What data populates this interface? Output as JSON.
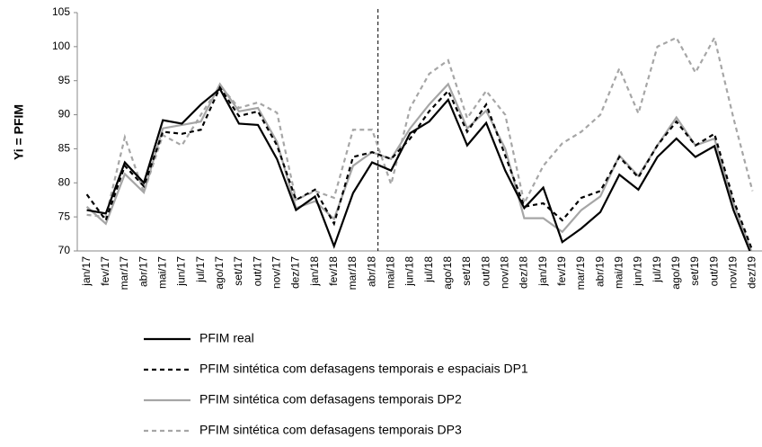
{
  "chart_data": {
    "type": "line",
    "y_label": "Yi = PFIM",
    "categories": [
      "jan/17",
      "fev/17",
      "mar/17",
      "abr/17",
      "mai/17",
      "jun/17",
      "jul/17",
      "ago/17",
      "set/17",
      "out/17",
      "nov/17",
      "dez/17",
      "jan/18",
      "fev/18",
      "mar/18",
      "abr/18",
      "mai/18",
      "jun/18",
      "jul/18",
      "ago/18",
      "set/18",
      "out/18",
      "nov/18",
      "dez/18",
      "jan/19",
      "fev/19",
      "mar/19",
      "abr/19",
      "mai/19",
      "jun/19",
      "jul/19",
      "ago/19",
      "set/19",
      "out/19",
      "nov/19",
      "dez/19"
    ],
    "ylim": [
      70,
      105
    ],
    "yticks": [
      70,
      75,
      80,
      85,
      90,
      95,
      100,
      105
    ],
    "grid": false,
    "series": [
      {
        "name": "PFIM real",
        "color": "#000000",
        "dashed": false,
        "values": [
          76,
          75.5,
          83,
          80,
          89.2,
          88.7,
          91.5,
          93.8,
          88.7,
          88.5,
          83.5,
          76,
          78,
          70.7,
          78.5,
          83,
          81.8,
          87.3,
          89,
          92.2,
          85.5,
          88.8,
          81.8,
          76.3,
          79.3,
          71.3,
          73.3,
          75.7,
          81.2,
          79,
          83.8,
          86.5,
          83.8,
          85.4,
          76,
          69
        ]
      },
      {
        "name": "PFIM sintética com defasagens temporais e espaciais DP1",
        "color": "#000000",
        "dashed": true,
        "values": [
          78.3,
          74.5,
          82.5,
          79.5,
          87.5,
          87.2,
          87.8,
          94,
          89.8,
          90.5,
          85.5,
          77.5,
          79,
          74,
          83.8,
          84.5,
          83.5,
          86.5,
          90.5,
          93.5,
          87.5,
          91.5,
          84,
          76.5,
          77,
          74.5,
          77.8,
          78.8,
          83.8,
          80.8,
          85.5,
          89,
          85.5,
          87.2,
          77.5,
          70
        ]
      },
      {
        "name": "PFIM sintética com defasagens temporais DP2",
        "color": "#a6a6a6",
        "dashed": false,
        "values": [
          76.5,
          74,
          81.3,
          78.6,
          88,
          88.5,
          89,
          94.5,
          90.5,
          91,
          86,
          76.3,
          77.3,
          74.7,
          82.5,
          84.5,
          83.5,
          88,
          91.5,
          94.5,
          88,
          90.6,
          85,
          74.8,
          74.8,
          72.8,
          76,
          78,
          84,
          81,
          85.5,
          89.6,
          85.5,
          86.5,
          77,
          69.5
        ]
      },
      {
        "name": "PFIM sintética com defasagens temporais DP3",
        "color": "#a6a6a6",
        "dashed": true,
        "values": [
          75.3,
          75,
          86.7,
          78.6,
          87,
          85.5,
          90,
          94.3,
          91,
          91.8,
          90.3,
          77.5,
          78.8,
          77.8,
          87.8,
          87.8,
          79.8,
          91,
          96,
          98,
          89.5,
          93.5,
          90,
          77,
          82.5,
          85.8,
          87.5,
          90,
          96.8,
          90.2,
          100,
          101.3,
          96.2,
          101.3,
          89.5,
          78.8
        ]
      }
    ]
  }
}
